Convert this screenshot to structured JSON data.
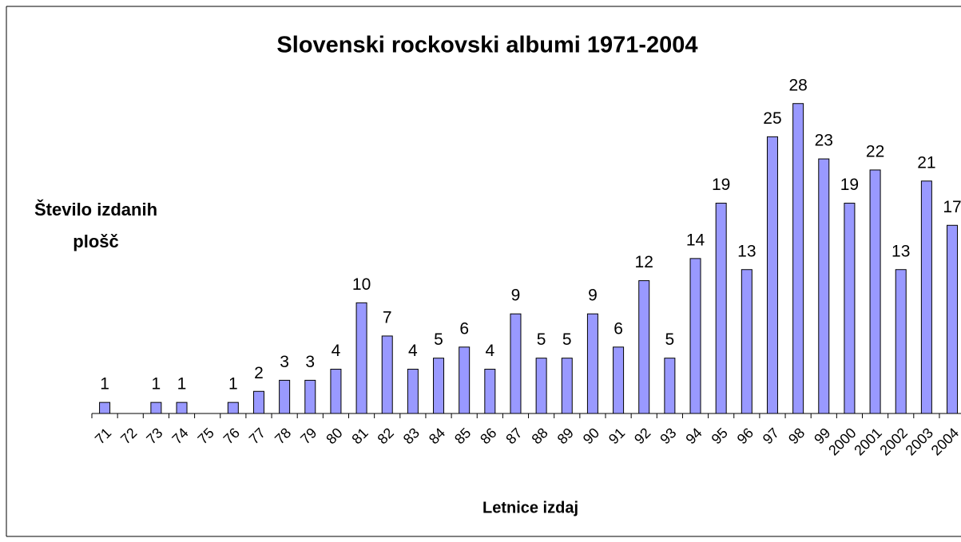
{
  "chart_data": {
    "type": "bar",
    "title": "Slovenski rockovski albumi 1971-2004",
    "y_label": "Število izdanih plošč",
    "x_label": "Letnice izdaj",
    "categories": [
      "71",
      "72",
      "73",
      "74",
      "75",
      "76",
      "77",
      "78",
      "79",
      "80",
      "81",
      "82",
      "83",
      "84",
      "85",
      "86",
      "87",
      "88",
      "89",
      "90",
      "91",
      "92",
      "93",
      "94",
      "95",
      "96",
      "97",
      "98",
      "99",
      "2000",
      "2001",
      "2002",
      "2003",
      "2004"
    ],
    "values": [
      1,
      null,
      1,
      1,
      null,
      1,
      2,
      3,
      3,
      4,
      10,
      7,
      4,
      5,
      6,
      4,
      9,
      5,
      5,
      9,
      6,
      12,
      5,
      14,
      19,
      13,
      25,
      28,
      23,
      19,
      22,
      13,
      21,
      17
    ],
    "color": "#9999ff",
    "ylim": [
      0,
      30
    ],
    "grid": false
  }
}
